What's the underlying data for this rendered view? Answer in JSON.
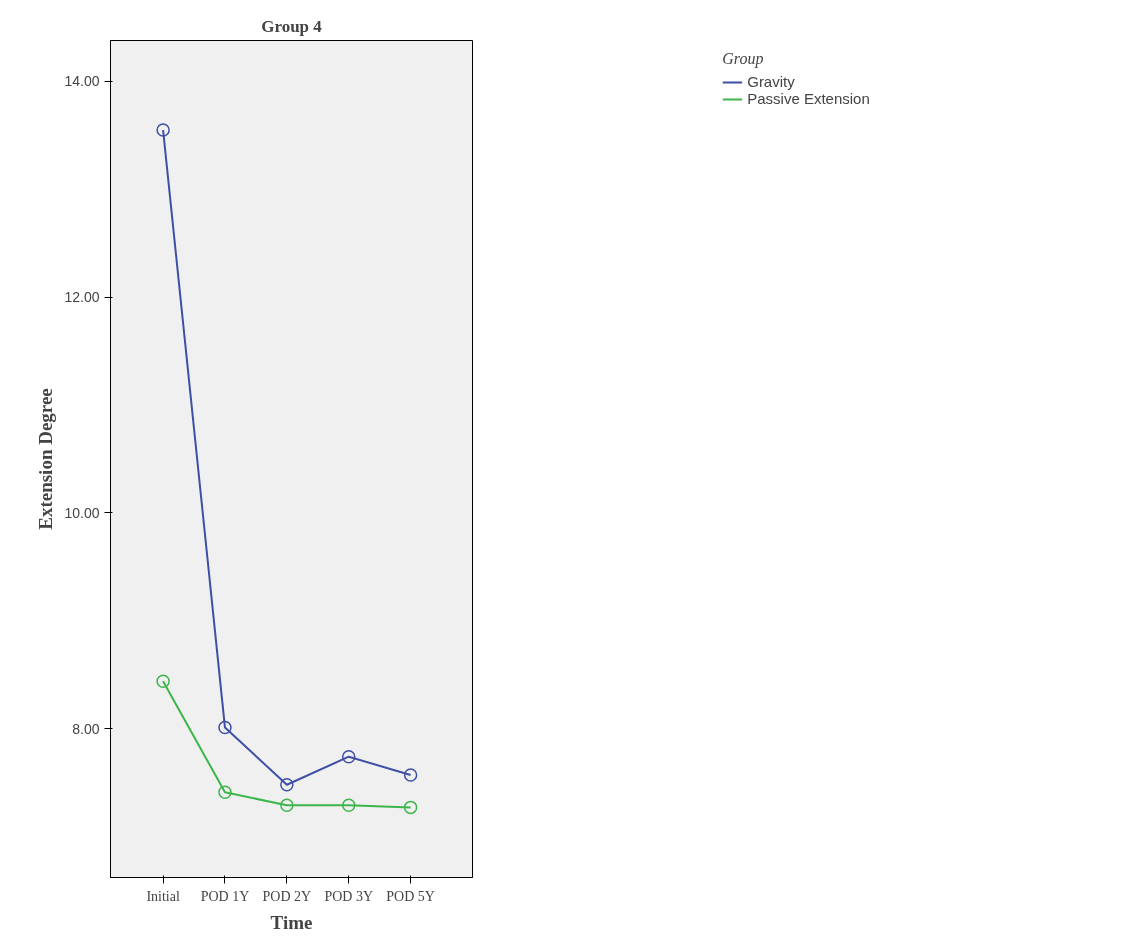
{
  "chart_data": {
    "type": "line",
    "title": "Group 4",
    "xlabel": "Time",
    "ylabel": "Extension Degree",
    "legend_title": "Group",
    "categories": [
      "Initial",
      "POD 1Y",
      "POD 2Y",
      "POD 3Y",
      "POD 5Y"
    ],
    "series": [
      {
        "name": "Gravity",
        "color": "#3e4fa6",
        "values": [
          13.55,
          8.01,
          7.48,
          7.74,
          7.57
        ]
      },
      {
        "name": "Passive Extension",
        "color": "#3cb64a",
        "values": [
          8.44,
          7.41,
          7.29,
          7.29,
          7.27
        ]
      }
    ],
    "ylim": [
      6.62,
      14.38
    ],
    "yticks": [
      {
        "value": 8,
        "label": "8.00"
      },
      {
        "value": 10,
        "label": "10.00"
      },
      {
        "value": 12,
        "label": "12.00"
      },
      {
        "value": 14,
        "label": "14.00"
      }
    ],
    "marker": "circle",
    "line_style": "solid",
    "grid": false,
    "legend": "top right"
  }
}
